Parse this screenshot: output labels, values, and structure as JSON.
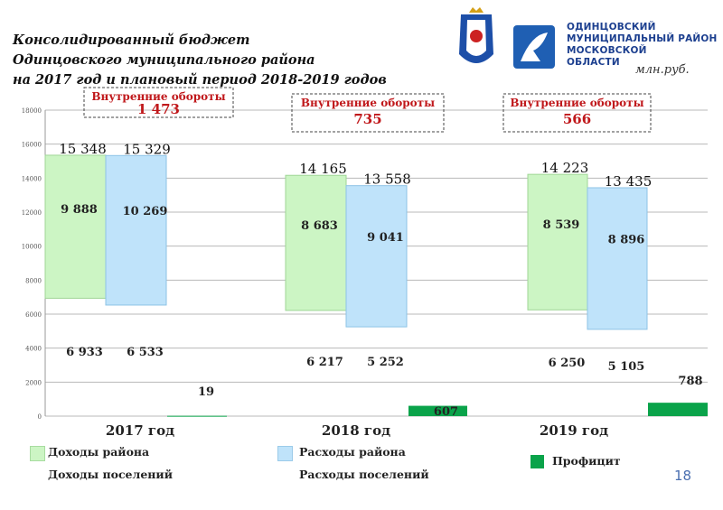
{
  "header": {
    "title_lines": [
      "Консолидированный бюджет",
      "Одинцовского муниципального района",
      "на 2017 год и плановый период 2018-2019 годов"
    ],
    "units": "млн.руб.",
    "org_lines": [
      "ОДИНЦОВСКИЙ",
      "МУНИЦИПАЛЬНЫЙ РАЙОН",
      "МОСКОВСКОЙ",
      "ОБЛАСТИ"
    ]
  },
  "page_number": "18",
  "colors": {
    "income": "#ccf5c4",
    "expense": "#bfe3fa",
    "surplus": "#0aa34a",
    "internal_box": "#444444",
    "internal_text": "#c0181b"
  },
  "legend": {
    "income_region": "Доходы района",
    "income_settlements": "Доходы поселений",
    "expense_region": "Расходы района",
    "expense_settlements": "Расходы поселений",
    "surplus": "Профицит"
  },
  "chart_data": {
    "type": "bar",
    "ylim": [
      0,
      18000
    ],
    "yticks": [
      "0",
      "2000",
      "4000",
      "6000",
      "8000",
      "10000",
      "12000",
      "14000",
      "16000",
      "18000"
    ],
    "grid": true,
    "internal_label": "Внутренние обороты",
    "years": [
      {
        "label": "2017 год",
        "income_total": 15348,
        "income_total_label": "15 348",
        "income_region": 9888,
        "income_region_label": "9 888",
        "income_settlements": 6933,
        "income_settlements_label": "6 933",
        "expense_total": 15329,
        "expense_total_label": "15 329",
        "expense_region": 10269,
        "expense_region_label": "10 269",
        "expense_settlements": 6533,
        "expense_settlements_label": "6 533",
        "surplus": 19,
        "surplus_label": "19",
        "internal": 1473,
        "internal_label": "1 473"
      },
      {
        "label": "2018 год",
        "income_total": 14165,
        "income_total_label": "14 165",
        "income_region": 8683,
        "income_region_label": "8 683",
        "income_settlements": 6217,
        "income_settlements_label": "6 217",
        "expense_total": 13558,
        "expense_total_label": "13 558",
        "expense_region": 9041,
        "expense_region_label": "9 041",
        "expense_settlements": 5252,
        "expense_settlements_label": "5 252",
        "surplus": 607,
        "surplus_label": "607",
        "internal": 735,
        "internal_label": "735"
      },
      {
        "label": "2019 год",
        "income_total": 14223,
        "income_total_label": "14 223",
        "income_region": 8539,
        "income_region_label": "8 539",
        "income_settlements": 6250,
        "income_settlements_label": "6 250",
        "expense_total": 13435,
        "expense_total_label": "13 435",
        "expense_region": 8896,
        "expense_region_label": "8 896",
        "expense_settlements": 5105,
        "expense_settlements_label": "5 105",
        "surplus": 788,
        "surplus_label": "788",
        "internal": 566,
        "internal_label": "566"
      }
    ]
  }
}
